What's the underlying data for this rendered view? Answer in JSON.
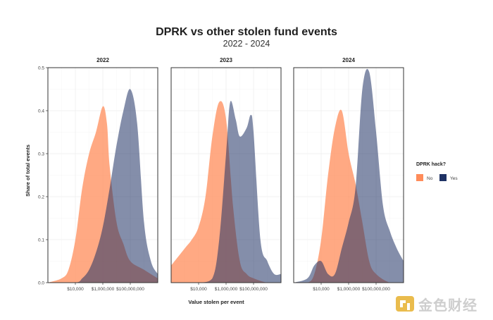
{
  "chart_data": {
    "type": "area",
    "title": "DPRK vs other stolen fund events",
    "subtitle": "2022 - 2024",
    "xlabel": "Value stolen per event",
    "ylabel": "Share of total events",
    "x_scale": "log10",
    "xlim": [
      100,
      10000000000
    ],
    "ylim": [
      0,
      0.5
    ],
    "x_ticks": [
      "$10,000",
      "$1,000,000",
      "$100,000,000"
    ],
    "y_ticks": [
      "0.0",
      "0.1",
      "0.2",
      "0.3",
      "0.4",
      "0.5"
    ],
    "grid": true,
    "legend": {
      "title": "DPRK hack?",
      "position": "right",
      "entries": [
        {
          "label": "No",
          "color": "#ff8c5a"
        },
        {
          "label": "Yes",
          "color": "#1f3264"
        }
      ]
    },
    "panels": [
      {
        "label": "2022",
        "series": [
          {
            "name": "No",
            "x": [
              100,
              1000,
              3162,
              10000,
              31623,
              100000,
              316228,
              1000000,
              2000000,
              3162278,
              10000000,
              31622777,
              100000000,
              1000000000,
              10000000000
            ],
            "y": [
              0.0,
              0.01,
              0.03,
              0.1,
              0.22,
              0.3,
              0.35,
              0.41,
              0.37,
              0.27,
              0.14,
              0.09,
              0.05,
              0.03,
              0.01
            ]
          },
          {
            "name": "Yes",
            "x": [
              100,
              10000,
              31623,
              100000,
              316228,
              1000000,
              3162278,
              10000000,
              31622777,
              100000000,
              316227766,
              1000000000,
              3162277660,
              10000000000
            ],
            "y": [
              0.0,
              0.0,
              0.01,
              0.03,
              0.07,
              0.13,
              0.22,
              0.32,
              0.4,
              0.45,
              0.37,
              0.14,
              0.05,
              0.02
            ]
          }
        ]
      },
      {
        "label": "2023",
        "series": [
          {
            "name": "No",
            "x": [
              100,
              1000,
              3162,
              10000,
              31623,
              100000,
              316228,
              1000000,
              3162278,
              10000000,
              31622777,
              100000000,
              1000000000,
              10000000000
            ],
            "y": [
              0.04,
              0.08,
              0.1,
              0.13,
              0.2,
              0.34,
              0.42,
              0.38,
              0.18,
              0.05,
              0.02,
              0.01,
              0.0,
              0.0
            ]
          },
          {
            "name": "Yes",
            "x": [
              100,
              10000,
              100000,
              316228,
              1000000,
              2000000,
              5000000,
              10000000,
              31622777,
              63095734,
              100000000,
              316227766,
              1000000000,
              3162277660,
              10000000000
            ],
            "y": [
              0.0,
              0.0,
              0.01,
              0.1,
              0.3,
              0.42,
              0.38,
              0.34,
              0.36,
              0.39,
              0.35,
              0.1,
              0.05,
              0.02,
              0.02
            ]
          }
        ]
      },
      {
        "label": "2024",
        "series": [
          {
            "name": "No",
            "x": [
              100,
              1000,
              3162,
              10000,
              31623,
              100000,
              316228,
              1000000,
              3162278,
              10000000,
              31622777,
              100000000,
              1000000000,
              10000000000
            ],
            "y": [
              0.0,
              0.0,
              0.02,
              0.1,
              0.25,
              0.36,
              0.4,
              0.3,
              0.23,
              0.14,
              0.05,
              0.02,
              0.0,
              0.0
            ]
          },
          {
            "name": "Yes",
            "x": [
              100,
              1000,
              3162,
              10000,
              31623,
              100000,
              316228,
              1000000,
              3162278,
              10000000,
              31622777,
              100000000,
              316227766,
              1000000000,
              3162277660,
              10000000000
            ],
            "y": [
              0.0,
              0.01,
              0.04,
              0.05,
              0.02,
              0.02,
              0.08,
              0.14,
              0.22,
              0.45,
              0.49,
              0.35,
              0.18,
              0.12,
              0.08,
              0.05
            ]
          }
        ]
      }
    ]
  },
  "watermark": {
    "text": "金色财经",
    "icon": "gold-square-logo-icon"
  }
}
